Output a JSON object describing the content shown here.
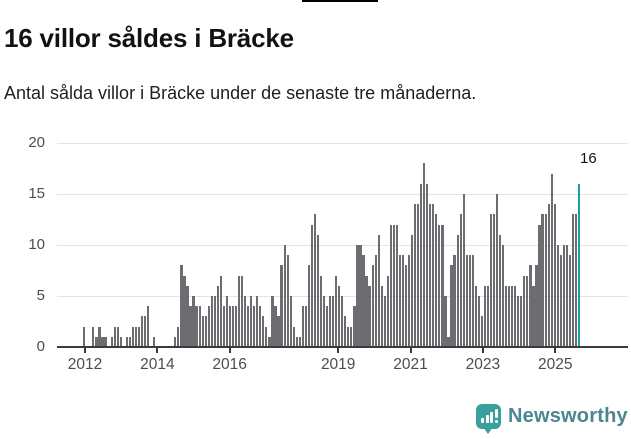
{
  "header": {
    "title": "16 villor såldes i Bräcke",
    "subtitle": "Antal sålda villor i Bräcke under de senaste tre månaderna."
  },
  "chart_data": {
    "type": "bar",
    "title": "16 villor såldes i Bräcke",
    "subtitle": "Antal sålda villor i Bräcke under de senaste tre månaderna.",
    "x_unit": "month",
    "start_month": "2012-01",
    "end_month": "2025-08",
    "values": [
      2,
      0,
      0,
      2,
      1,
      2,
      1,
      1,
      0,
      1,
      2,
      2,
      1,
      0,
      1,
      1,
      2,
      2,
      2,
      3,
      3,
      4,
      0,
      1,
      0,
      0,
      0,
      0,
      0,
      0,
      1,
      2,
      8,
      7,
      6,
      4,
      5,
      4,
      4,
      3,
      3,
      4,
      5,
      5,
      6,
      7,
      4,
      5,
      4,
      4,
      4,
      7,
      7,
      5,
      4,
      5,
      4,
      5,
      4,
      3,
      2,
      1,
      5,
      4,
      3,
      8,
      10,
      9,
      5,
      2,
      1,
      1,
      4,
      4,
      8,
      12,
      13,
      11,
      7,
      5,
      4,
      5,
      5,
      7,
      6,
      5,
      3,
      2,
      2,
      4,
      10,
      10,
      9,
      7,
      6,
      8,
      9,
      11,
      6,
      5,
      7,
      12,
      12,
      12,
      9,
      9,
      8,
      9,
      11,
      14,
      14,
      16,
      18,
      16,
      14,
      14,
      13,
      12,
      12,
      5,
      1,
      8,
      9,
      11,
      13,
      15,
      9,
      9,
      9,
      6,
      5,
      3,
      6,
      6,
      13,
      13,
      15,
      11,
      10,
      6,
      6,
      6,
      6,
      5,
      5,
      7,
      7,
      8,
      6,
      8,
      12,
      13,
      13,
      14,
      17,
      14,
      10,
      9,
      10,
      10,
      9,
      13,
      13,
      16
    ],
    "highlight_index": 163,
    "highlight_value": 16,
    "annotation": "16",
    "ylim": [
      0,
      20
    ],
    "y_ticks": [
      0,
      5,
      10,
      15,
      20
    ],
    "x_ticks": [
      2012,
      2014,
      2016,
      2019,
      2021,
      2023,
      2025
    ],
    "grid": "horizontal",
    "legend": "none",
    "bar_color": "#6d6d71",
    "highlight_color": "#18a09f",
    "axis_color": "#3b3b3b",
    "grid_color": "#e3e3e3",
    "tick_label_color": "#4d4d4d"
  },
  "footer": {
    "brand": "Newsworthy"
  }
}
